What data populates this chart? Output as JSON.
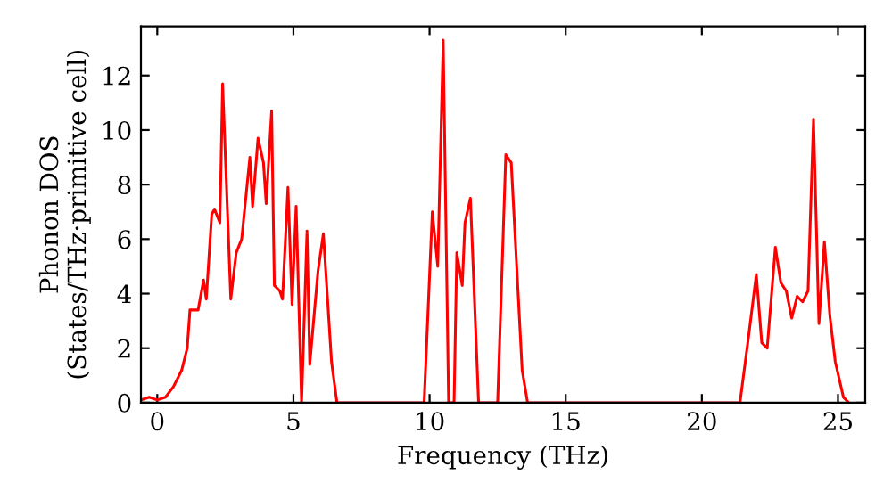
{
  "chart_data": {
    "type": "line",
    "xlabel": "Frequency (THz)",
    "ylabel": "Phonon DOS\n(States/THz·primitive cell)",
    "xlim": [
      -0.6,
      26
    ],
    "ylim": [
      0,
      13.8
    ],
    "xticks": [
      0,
      5,
      10,
      15,
      20,
      25
    ],
    "yticks": [
      0,
      2,
      4,
      6,
      8,
      10,
      12
    ],
    "grid": false,
    "marker": "none",
    "line_style": "solid",
    "series": [
      {
        "color": "#ff0000",
        "x": [
          -0.6,
          -0.3,
          0,
          0.3,
          0.6,
          0.9,
          1.1,
          1.2,
          1.5,
          1.7,
          1.8,
          2.0,
          2.1,
          2.3,
          2.4,
          2.7,
          2.9,
          3.1,
          3.4,
          3.5,
          3.7,
          3.9,
          4.0,
          4.2,
          4.3,
          4.5,
          4.6,
          4.8,
          4.95,
          5.1,
          5.3,
          5.5,
          5.6,
          5.9,
          6.1,
          6.4,
          6.6,
          9.8,
          10.1,
          10.3,
          10.5,
          10.7,
          10.9,
          11.0,
          11.2,
          11.3,
          11.5,
          11.8,
          12.5,
          12.8,
          13.0,
          13.4,
          13.6,
          21.4,
          21.7,
          22.0,
          22.2,
          22.4,
          22.7,
          22.9,
          23.1,
          23.3,
          23.5,
          23.7,
          23.9,
          24.1,
          24.3,
          24.5,
          24.7,
          24.9,
          25.2,
          25.4
        ],
        "values": [
          0.1,
          0.2,
          0.1,
          0.2,
          0.6,
          1.2,
          2,
          3.4,
          3.4,
          4.5,
          3.8,
          6.9,
          7.1,
          6.6,
          11.7,
          3.8,
          5.5,
          6,
          9,
          7.2,
          9.7,
          8.8,
          7.3,
          10.7,
          4.3,
          4.1,
          3.8,
          7.9,
          3.6,
          7.2,
          0,
          6.3,
          1.4,
          4.8,
          6.2,
          1.5,
          0,
          0,
          7,
          5,
          13.3,
          0,
          0,
          5.5,
          4.3,
          6.6,
          7.5,
          0,
          0,
          9.1,
          8.8,
          1.2,
          0,
          0,
          2.3,
          4.7,
          2.2,
          2,
          5.7,
          4.4,
          4.1,
          3.1,
          3.9,
          3.7,
          4.1,
          10.4,
          2.9,
          5.9,
          3.2,
          1.5,
          0.2,
          0
        ]
      }
    ]
  }
}
